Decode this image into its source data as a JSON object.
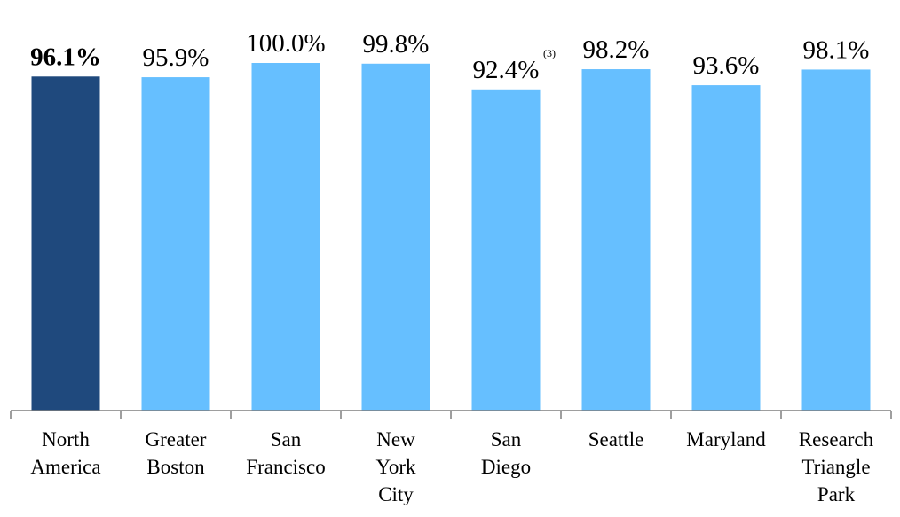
{
  "chart_data": {
    "type": "bar",
    "categories": [
      [
        "North",
        "America"
      ],
      [
        "Greater",
        "Boston"
      ],
      [
        "San",
        "Francisco"
      ],
      [
        "New",
        "York",
        "City"
      ],
      [
        "San",
        "Diego"
      ],
      [
        "Seattle"
      ],
      [
        "Maryland"
      ],
      [
        "Research",
        "Triangle",
        "Park"
      ]
    ],
    "values": [
      96.1,
      95.9,
      100.0,
      99.8,
      92.4,
      98.2,
      93.6,
      98.1
    ],
    "value_labels": [
      "96.1%",
      "95.9%",
      "100.0%",
      "99.8%",
      "92.4%",
      "98.2%",
      "93.6%",
      "98.1%"
    ],
    "annotations": [
      {
        "category_index": 4,
        "text": "(3)"
      }
    ],
    "highlight_index": 0,
    "ylim": [
      0,
      100
    ],
    "grid": false,
    "legend": "none",
    "colors": {
      "highlight": "#1f497d",
      "default": "#66bfff",
      "axis": "#7f7f7f"
    }
  }
}
